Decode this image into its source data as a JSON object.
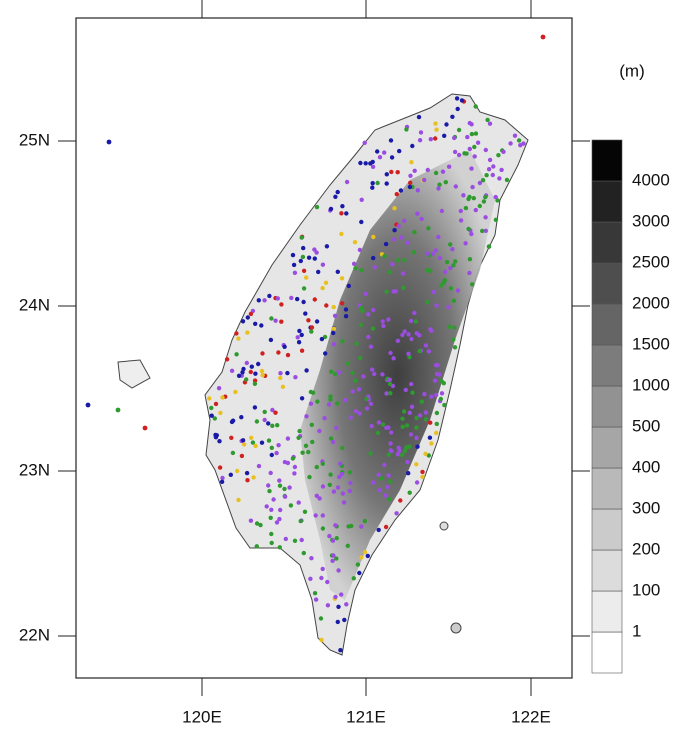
{
  "map": {
    "x_labels": [
      "120E",
      "121E",
      "122E"
    ],
    "y_labels": [
      "25N",
      "24N",
      "23N",
      "22N"
    ],
    "colorbar": {
      "unit": "(m)",
      "levels": [
        1,
        100,
        200,
        300,
        400,
        500,
        1000,
        1500,
        2000,
        2500,
        3000,
        4000
      ],
      "colors": [
        "#ffffff",
        "#ececec",
        "#dcdcdc",
        "#cbcbcb",
        "#b9b9b9",
        "#a6a6a6",
        "#929292",
        "#7c7c7c",
        "#656565",
        "#4e4e4e",
        "#383838",
        "#222222",
        "#050505"
      ]
    }
  }
}
